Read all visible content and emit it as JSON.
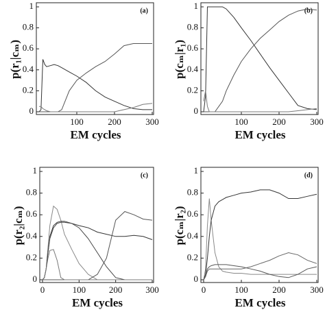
{
  "chart_data": [
    {
      "type": "line",
      "annotation": "(a)",
      "xlabel": "EM cycles",
      "ylabel": "p(r₁|cₘ)",
      "x": [
        0,
        5,
        10,
        15,
        20,
        30,
        40,
        50,
        60,
        80,
        100,
        125,
        150,
        175,
        200,
        225,
        250,
        275,
        300
      ],
      "xlim": [
        0,
        300
      ],
      "xticks": [
        100,
        200,
        300
      ],
      "ylim": [
        0,
        1
      ],
      "yticks": [
        0,
        0.2,
        0.4,
        0.6,
        0.8,
        1
      ],
      "series": [
        {
          "color": "#333",
          "values": [
            0,
            0.02,
            0.5,
            0.45,
            0.43,
            0.44,
            0.45,
            0.44,
            0.42,
            0.38,
            0.34,
            0.28,
            0.2,
            0.14,
            0.1,
            0.06,
            0.03,
            0.02,
            0.02
          ]
        },
        {
          "color": "#555",
          "values": [
            0,
            0,
            0,
            0,
            0,
            0,
            0,
            0,
            0.02,
            0.2,
            0.3,
            0.37,
            0.43,
            0.48,
            0.55,
            0.63,
            0.65,
            0.65,
            0.65
          ]
        },
        {
          "color": "#777",
          "values": [
            0.05,
            0.05,
            0.03,
            0.02,
            0.01,
            0,
            0,
            0,
            0,
            0,
            0,
            0,
            0,
            0,
            0,
            0.02,
            0.04,
            0.07,
            0.08
          ]
        }
      ]
    },
    {
      "type": "line",
      "annotation": "(b)",
      "xlabel": "EM cycles",
      "ylabel": "p(cₘ|r₁)",
      "x": [
        0,
        5,
        10,
        15,
        20,
        30,
        40,
        50,
        60,
        80,
        100,
        125,
        150,
        175,
        200,
        225,
        250,
        275,
        300
      ],
      "xlim": [
        0,
        300
      ],
      "xticks": [
        100,
        200,
        300
      ],
      "ylim": [
        0,
        1
      ],
      "yticks": [
        0,
        0.2,
        0.4,
        0.6,
        0.8,
        1
      ],
      "series": [
        {
          "color": "#333",
          "values": [
            0,
            0.15,
            1,
            1,
            1,
            1,
            1,
            1,
            0.98,
            0.9,
            0.8,
            0.68,
            0.55,
            0.42,
            0.3,
            0.18,
            0.06,
            0.03,
            0.02
          ]
        },
        {
          "color": "#555",
          "values": [
            0,
            0,
            0,
            0,
            0,
            0,
            0.05,
            0.1,
            0.2,
            0.35,
            0.48,
            0.6,
            0.7,
            0.78,
            0.86,
            0.92,
            0.96,
            0.98,
            0.97
          ]
        },
        {
          "color": "#777",
          "values": [
            0.1,
            0.2,
            0.05,
            0,
            0,
            0,
            0,
            0,
            0,
            0,
            0,
            0,
            0,
            0,
            0,
            0,
            0.01,
            0.02,
            0.03
          ]
        }
      ]
    },
    {
      "type": "line",
      "annotation": "(c)",
      "xlabel": "EM cycles",
      "ylabel": "p(r₂|cₘ)",
      "x": [
        0,
        5,
        10,
        15,
        20,
        30,
        40,
        50,
        60,
        80,
        100,
        125,
        150,
        175,
        200,
        225,
        250,
        275,
        300
      ],
      "xlim": [
        0,
        300
      ],
      "xticks": [
        0,
        100,
        200,
        300
      ],
      "ylim": [
        0,
        1
      ],
      "yticks": [
        0,
        0.2,
        0.4,
        0.6,
        0.8,
        1
      ],
      "series": [
        {
          "color": "#888",
          "values": [
            0,
            0.02,
            0.1,
            0.3,
            0.5,
            0.68,
            0.65,
            0.55,
            0.42,
            0.28,
            0.15,
            0.05,
            0,
            0,
            0,
            0,
            0,
            0,
            0
          ]
        },
        {
          "color": "#333",
          "values": [
            0,
            0.02,
            0.1,
            0.25,
            0.4,
            0.5,
            0.53,
            0.54,
            0.54,
            0.52,
            0.5,
            0.48,
            0.44,
            0.42,
            0.4,
            0.4,
            0.41,
            0.4,
            0.37
          ]
        },
        {
          "color": "#444",
          "values": [
            0,
            0.02,
            0.1,
            0.25,
            0.38,
            0.48,
            0.52,
            0.53,
            0.53,
            0.52,
            0.48,
            0.38,
            0.25,
            0.12,
            0.02,
            0,
            0,
            0,
            0
          ]
        },
        {
          "color": "#555",
          "values": [
            0,
            0,
            0,
            0,
            0,
            0,
            0,
            0,
            0,
            0,
            0,
            0,
            0.05,
            0.2,
            0.55,
            0.63,
            0.6,
            0.56,
            0.55
          ]
        },
        {
          "color": "#777",
          "values": [
            0,
            0.02,
            0.1,
            0.2,
            0.27,
            0.28,
            0.18,
            0.02,
            0,
            0,
            0,
            0,
            0,
            0,
            0,
            0,
            0,
            0,
            0
          ]
        }
      ]
    },
    {
      "type": "line",
      "annotation": "(d)",
      "xlabel": "EM cycles",
      "ylabel": "p(cₘ|r₂)",
      "x": [
        0,
        5,
        10,
        15,
        20,
        30,
        40,
        50,
        60,
        80,
        100,
        125,
        150,
        175,
        200,
        225,
        250,
        275,
        300
      ],
      "xlim": [
        0,
        300
      ],
      "xticks": [
        0,
        100,
        200,
        300
      ],
      "ylim": [
        0,
        1
      ],
      "yticks": [
        0,
        0.2,
        0.4,
        0.6,
        0.8,
        1
      ],
      "series": [
        {
          "color": "#888",
          "values": [
            0,
            0.1,
            0.5,
            0.75,
            0.55,
            0.25,
            0.12,
            0.08,
            0.07,
            0.06,
            0.06,
            0.05,
            0.05,
            0.05,
            0.05,
            0.05,
            0.05,
            0.05,
            0.05
          ]
        },
        {
          "color": "#333",
          "values": [
            0,
            0.05,
            0.2,
            0.4,
            0.55,
            0.68,
            0.72,
            0.74,
            0.76,
            0.78,
            0.8,
            0.81,
            0.83,
            0.83,
            0.8,
            0.75,
            0.75,
            0.77,
            0.79
          ]
        },
        {
          "color": "#555",
          "values": [
            0,
            0.03,
            0.1,
            0.12,
            0.13,
            0.14,
            0.14,
            0.14,
            0.14,
            0.13,
            0.12,
            0.1,
            0.08,
            0.05,
            0.03,
            0.02,
            0.05,
            0.1,
            0.12
          ]
        },
        {
          "color": "#666",
          "values": [
            0,
            0.03,
            0.08,
            0.1,
            0.1,
            0.1,
            0.1,
            0.1,
            0.1,
            0.1,
            0.1,
            0.12,
            0.15,
            0.18,
            0.22,
            0.25,
            0.23,
            0.18,
            0.15
          ]
        }
      ]
    }
  ]
}
